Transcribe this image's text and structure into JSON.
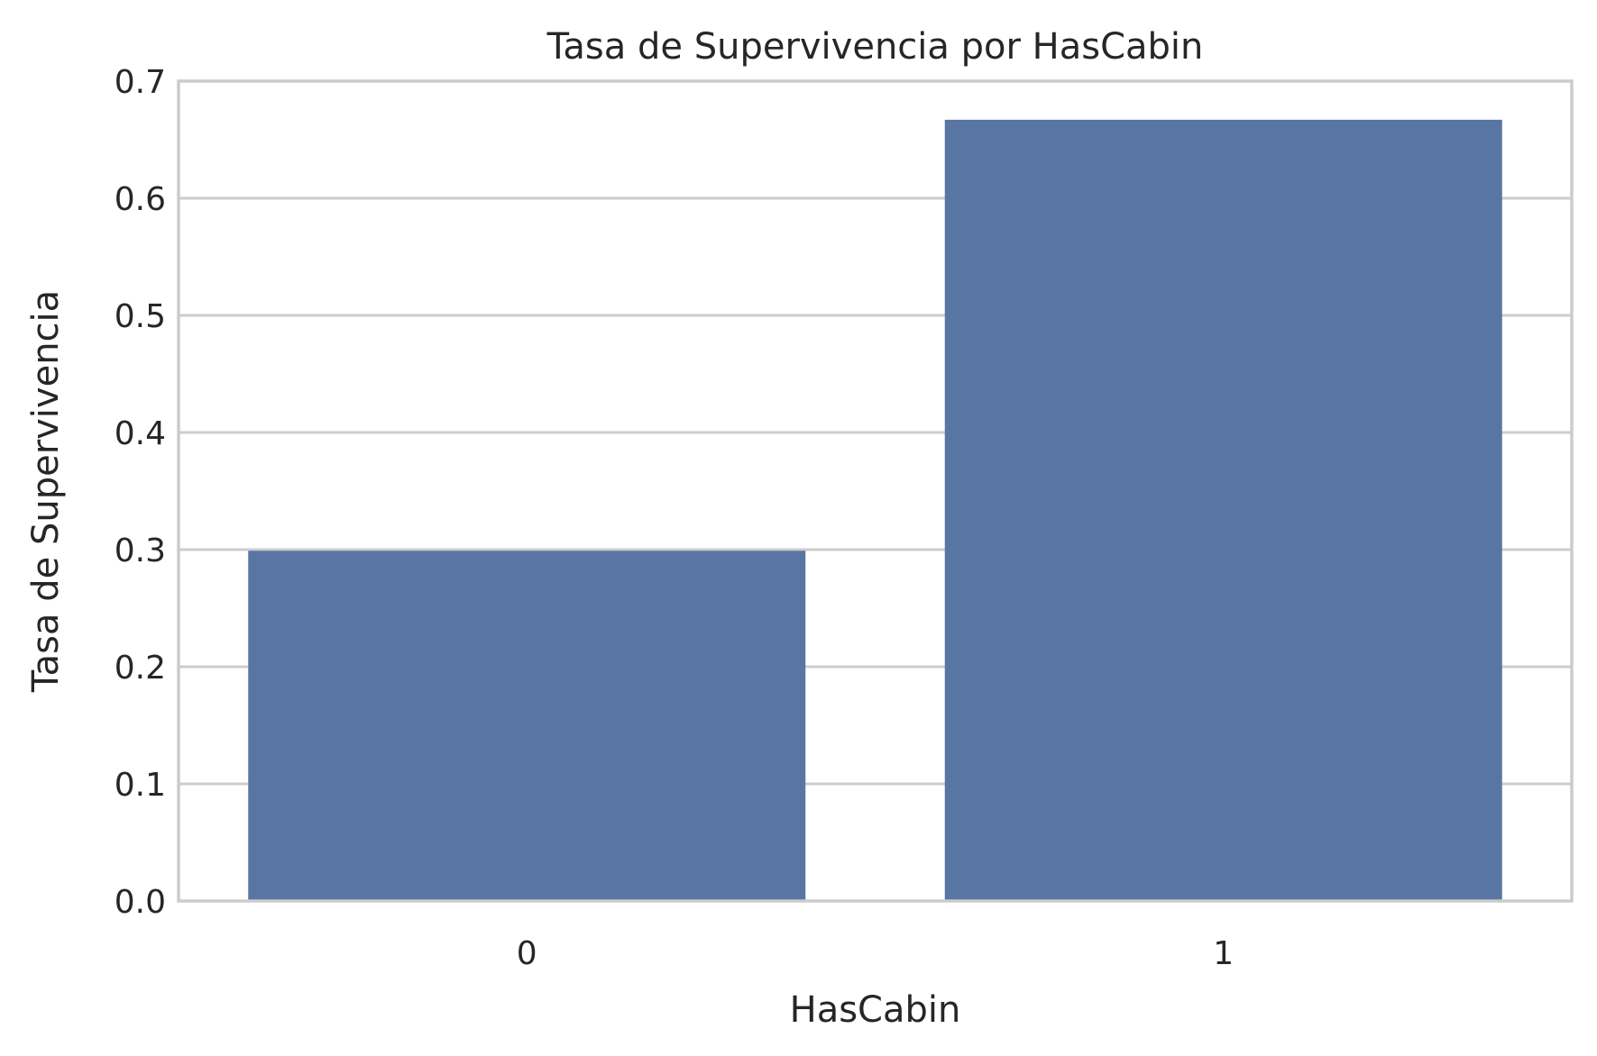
{
  "chart_data": {
    "type": "bar",
    "title": "Tasa de Supervivencia por HasCabin",
    "xlabel": "HasCabin",
    "ylabel": "Tasa de Supervivencia",
    "categories": [
      "0",
      "1"
    ],
    "values": [
      0.299,
      0.667
    ],
    "ylim": [
      0,
      0.7
    ],
    "yticks": [
      "0.0",
      "0.1",
      "0.2",
      "0.3",
      "0.4",
      "0.5",
      "0.6",
      "0.7"
    ],
    "grid": true,
    "bar_color": "#5975a4",
    "grid_color": "#cccccc",
    "text_color": "#262626"
  }
}
